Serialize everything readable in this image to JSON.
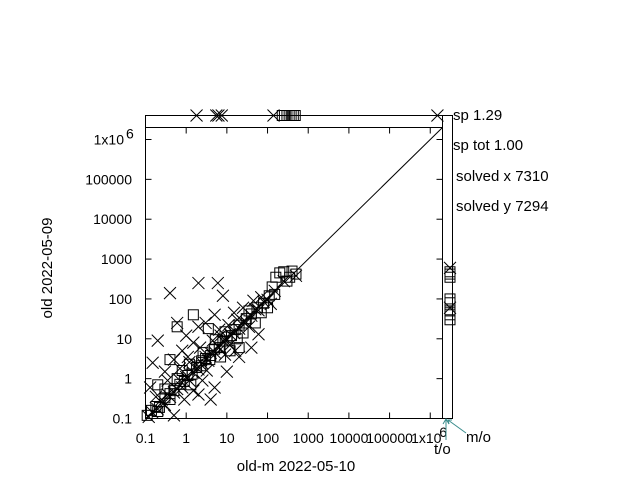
{
  "chart_data": {
    "type": "scatter",
    "scale": "log-log",
    "xlabel": "old-m 2022-05-10",
    "ylabel": "old 2022-05-09",
    "xlim": [
      0.1,
      2000000
    ],
    "ylim": [
      0.1,
      2000000
    ],
    "x_ticks": [
      {
        "value": 0.1,
        "label": "0.1"
      },
      {
        "value": 1,
        "label": "1"
      },
      {
        "value": 10,
        "label": "10"
      },
      {
        "value": 100,
        "label": "100"
      },
      {
        "value": 1000,
        "label": "1000"
      },
      {
        "value": 10000,
        "label": "10000"
      },
      {
        "value": 100000,
        "label": "100000"
      },
      {
        "value": 1000000,
        "label": "1x10",
        "exp": "6"
      }
    ],
    "y_ticks": [
      {
        "value": 0.1,
        "label": "0.1"
      },
      {
        "value": 1,
        "label": "1"
      },
      {
        "value": 10,
        "label": "10"
      },
      {
        "value": 100,
        "label": "100"
      },
      {
        "value": 1000,
        "label": "1000"
      },
      {
        "value": 10000,
        "label": "10000"
      },
      {
        "value": 100000,
        "label": "100000"
      },
      {
        "value": 1000000,
        "label": "1x10",
        "exp": "6"
      }
    ],
    "stats": {
      "sp": "sp 1.29",
      "sp_tot": "sp tot 1.00",
      "solved_x": "solved x 7310",
      "solved_y": "solved y 7294"
    },
    "corner_labels": {
      "mo": "m/o",
      "to": "t/o"
    },
    "reference_line": "y = x",
    "series": [
      {
        "name": "cross",
        "marker": "x",
        "points": [
          [
            0.12,
            0.11
          ],
          [
            0.15,
            0.14
          ],
          [
            0.2,
            0.17
          ],
          [
            0.25,
            0.3
          ],
          [
            0.3,
            0.22
          ],
          [
            0.35,
            0.4
          ],
          [
            0.4,
            0.35
          ],
          [
            0.5,
            0.45
          ],
          [
            0.6,
            0.55
          ],
          [
            0.7,
            0.9
          ],
          [
            0.8,
            0.6
          ],
          [
            1,
            1.1
          ],
          [
            1.2,
            0.9
          ],
          [
            1.5,
            1.4
          ],
          [
            1.8,
            2.2
          ],
          [
            2,
            1.7
          ],
          [
            2.5,
            2.4
          ],
          [
            3,
            3.5
          ],
          [
            3.5,
            2.8
          ],
          [
            4,
            4.4
          ],
          [
            5,
            4.6
          ],
          [
            6,
            6.5
          ],
          [
            7,
            5.5
          ],
          [
            8,
            9
          ],
          [
            10,
            9.5
          ],
          [
            12,
            13
          ],
          [
            15,
            14
          ],
          [
            20,
            18
          ],
          [
            25,
            27
          ],
          [
            30,
            26
          ],
          [
            40,
            38
          ],
          [
            50,
            55
          ],
          [
            60,
            52
          ],
          [
            80,
            85
          ],
          [
            100,
            95
          ],
          [
            150,
            160
          ],
          [
            0.13,
            0.6
          ],
          [
            0.3,
            1.5
          ],
          [
            0.5,
            3
          ],
          [
            0.8,
            5
          ],
          [
            1,
            12
          ],
          [
            1.5,
            8
          ],
          [
            2,
            20
          ],
          [
            0.15,
            2.5
          ],
          [
            0.2,
            9
          ],
          [
            0.6,
            25
          ],
          [
            2,
            250
          ],
          [
            6,
            250
          ],
          [
            8,
            120
          ],
          [
            0.4,
            140
          ],
          [
            3,
            25
          ],
          [
            5,
            40
          ],
          [
            0.5,
            0.12
          ],
          [
            2,
            0.4
          ],
          [
            4,
            0.3
          ],
          [
            5,
            0.6
          ],
          [
            10,
            1.5
          ],
          [
            20,
            3.5
          ],
          [
            60,
            13
          ],
          [
            40,
            6
          ],
          [
            0.25,
            0.25
          ],
          [
            0.18,
            0.35
          ],
          [
            1.2,
            2.6
          ],
          [
            3.2,
            1.6
          ],
          [
            7,
            12
          ],
          [
            12,
            7
          ],
          [
            18,
            30
          ],
          [
            35,
            20
          ],
          [
            70,
            110
          ],
          [
            120,
            75
          ],
          [
            250,
            280
          ],
          [
            500,
            380
          ],
          [
            0.9,
            0.3
          ],
          [
            1.5,
            0.5
          ],
          [
            2.5,
            0.9
          ],
          [
            9,
            4
          ],
          [
            16,
            5
          ],
          [
            0.35,
            0.9
          ],
          [
            0.7,
            1.8
          ],
          [
            1.1,
            3.5
          ],
          [
            2.2,
            6
          ],
          [
            4.5,
            9
          ],
          [
            6.5,
            17
          ],
          [
            11,
            22
          ],
          [
            15,
            45
          ],
          [
            25,
            60
          ],
          [
            45,
            90
          ]
        ]
      },
      {
        "name": "square",
        "marker": "square",
        "points": [
          [
            0.11,
            0.12
          ],
          [
            0.14,
            0.16
          ],
          [
            0.18,
            0.2
          ],
          [
            0.22,
            0.19
          ],
          [
            0.3,
            0.33
          ],
          [
            0.4,
            0.42
          ],
          [
            0.5,
            0.5
          ],
          [
            0.7,
            0.72
          ],
          [
            0.9,
            0.85
          ],
          [
            1.1,
            1.2
          ],
          [
            1.4,
            1.3
          ],
          [
            1.8,
            1.9
          ],
          [
            2.3,
            2.1
          ],
          [
            3,
            3.2
          ],
          [
            4,
            3.8
          ],
          [
            5,
            5.5
          ],
          [
            6.5,
            6
          ],
          [
            8,
            8.8
          ],
          [
            10,
            11
          ],
          [
            13,
            12
          ],
          [
            16,
            17
          ],
          [
            20,
            22
          ],
          [
            30,
            32
          ],
          [
            40,
            42
          ],
          [
            55,
            60
          ],
          [
            80,
            78
          ],
          [
            110,
            120
          ],
          [
            150,
            130
          ],
          [
            200,
            450
          ],
          [
            250,
            480
          ],
          [
            300,
            280
          ],
          [
            400,
            500
          ],
          [
            500,
            420
          ],
          [
            0.2,
            0.7
          ],
          [
            0.4,
            0.3
          ],
          [
            0.8,
            1.6
          ],
          [
            1.3,
            0.7
          ],
          [
            2.4,
            2.8
          ],
          [
            3.8,
            3
          ],
          [
            0.6,
            20
          ],
          [
            1.5,
            40
          ],
          [
            3.5,
            18
          ],
          [
            0.4,
            3
          ],
          [
            0.2,
            0.15
          ],
          [
            7,
            3.5
          ],
          [
            12,
            5
          ],
          [
            25,
            14
          ],
          [
            50,
            25
          ],
          [
            100,
            60
          ],
          [
            20,
            6
          ],
          [
            0.3,
            0.55
          ],
          [
            0.6,
            1
          ],
          [
            1.2,
            2.3
          ],
          [
            2.6,
            4.5
          ],
          [
            5.2,
            9.5
          ],
          [
            9,
            15
          ],
          [
            18,
            10
          ],
          [
            35,
            50
          ],
          [
            70,
            45
          ],
          [
            130,
            200
          ],
          [
            160,
            350
          ],
          [
            350,
            350
          ]
        ]
      }
    ],
    "x_unsolved": [
      {
        "x": 1.8,
        "marker": "x"
      },
      {
        "x": 5.5,
        "marker": "x"
      },
      {
        "x": 6.2,
        "marker": "x"
      },
      {
        "x": 7.5,
        "marker": "x"
      },
      {
        "x": 140,
        "marker": "x"
      },
      {
        "x": 230,
        "marker": "square"
      },
      {
        "x": 260,
        "marker": "square"
      },
      {
        "x": 300,
        "marker": "square"
      },
      {
        "x": 340,
        "marker": "square"
      },
      {
        "x": 380,
        "marker": "square"
      },
      {
        "x": 430,
        "marker": "square"
      },
      {
        "x": 480,
        "marker": "square"
      },
      {
        "x": 1500000,
        "marker": "x"
      }
    ],
    "y_unsolved": [
      {
        "y": 30,
        "marker": "square"
      },
      {
        "y": 40,
        "marker": "square"
      },
      {
        "y": 50,
        "marker": "square"
      },
      {
        "y": 80,
        "marker": "square"
      },
      {
        "y": 100,
        "marker": "square"
      },
      {
        "y": 350,
        "marker": "square"
      },
      {
        "y": 420,
        "marker": "square"
      },
      {
        "y": 480,
        "marker": "square"
      },
      {
        "y": 600,
        "marker": "x"
      },
      {
        "y": 60,
        "marker": "x"
      }
    ]
  }
}
